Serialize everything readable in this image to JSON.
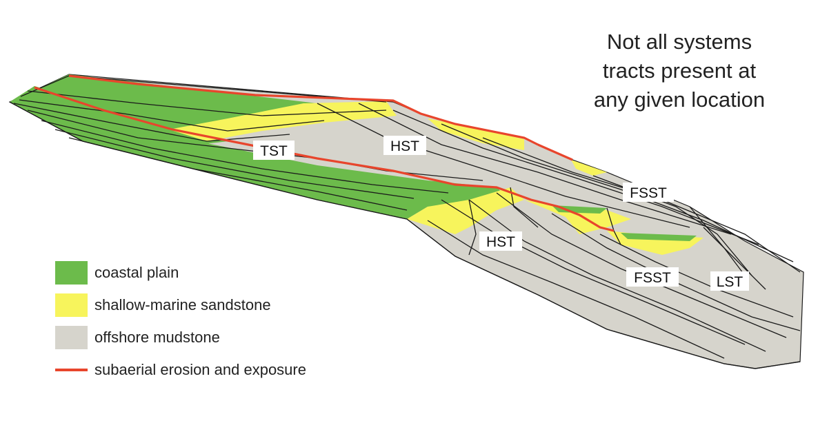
{
  "caption": [
    "Not all systems",
    "tracts present at",
    "any given location"
  ],
  "tracts": {
    "tst": "TST",
    "hst_upper": "HST",
    "hst_lower": "HST",
    "fsst_upper": "FSST",
    "fsst_lower": "FSST",
    "lst": "LST"
  },
  "colors": {
    "coastal": "#6cbb4b",
    "sandstone": "#f7f45c",
    "mudstone": "#d6d4cc",
    "erosion": "#e8452c",
    "line": "#1a1a1a"
  },
  "legend": [
    {
      "label": "coastal plain",
      "color": "#6cbb4b",
      "kind": "box"
    },
    {
      "label": "shallow-marine sandstone",
      "color": "#f7f45c",
      "kind": "box"
    },
    {
      "label": "offshore mudstone",
      "color": "#d6d4cc",
      "kind": "box"
    },
    {
      "label": "subaerial erosion and exposure",
      "color": "#e8452c",
      "kind": "line"
    }
  ]
}
